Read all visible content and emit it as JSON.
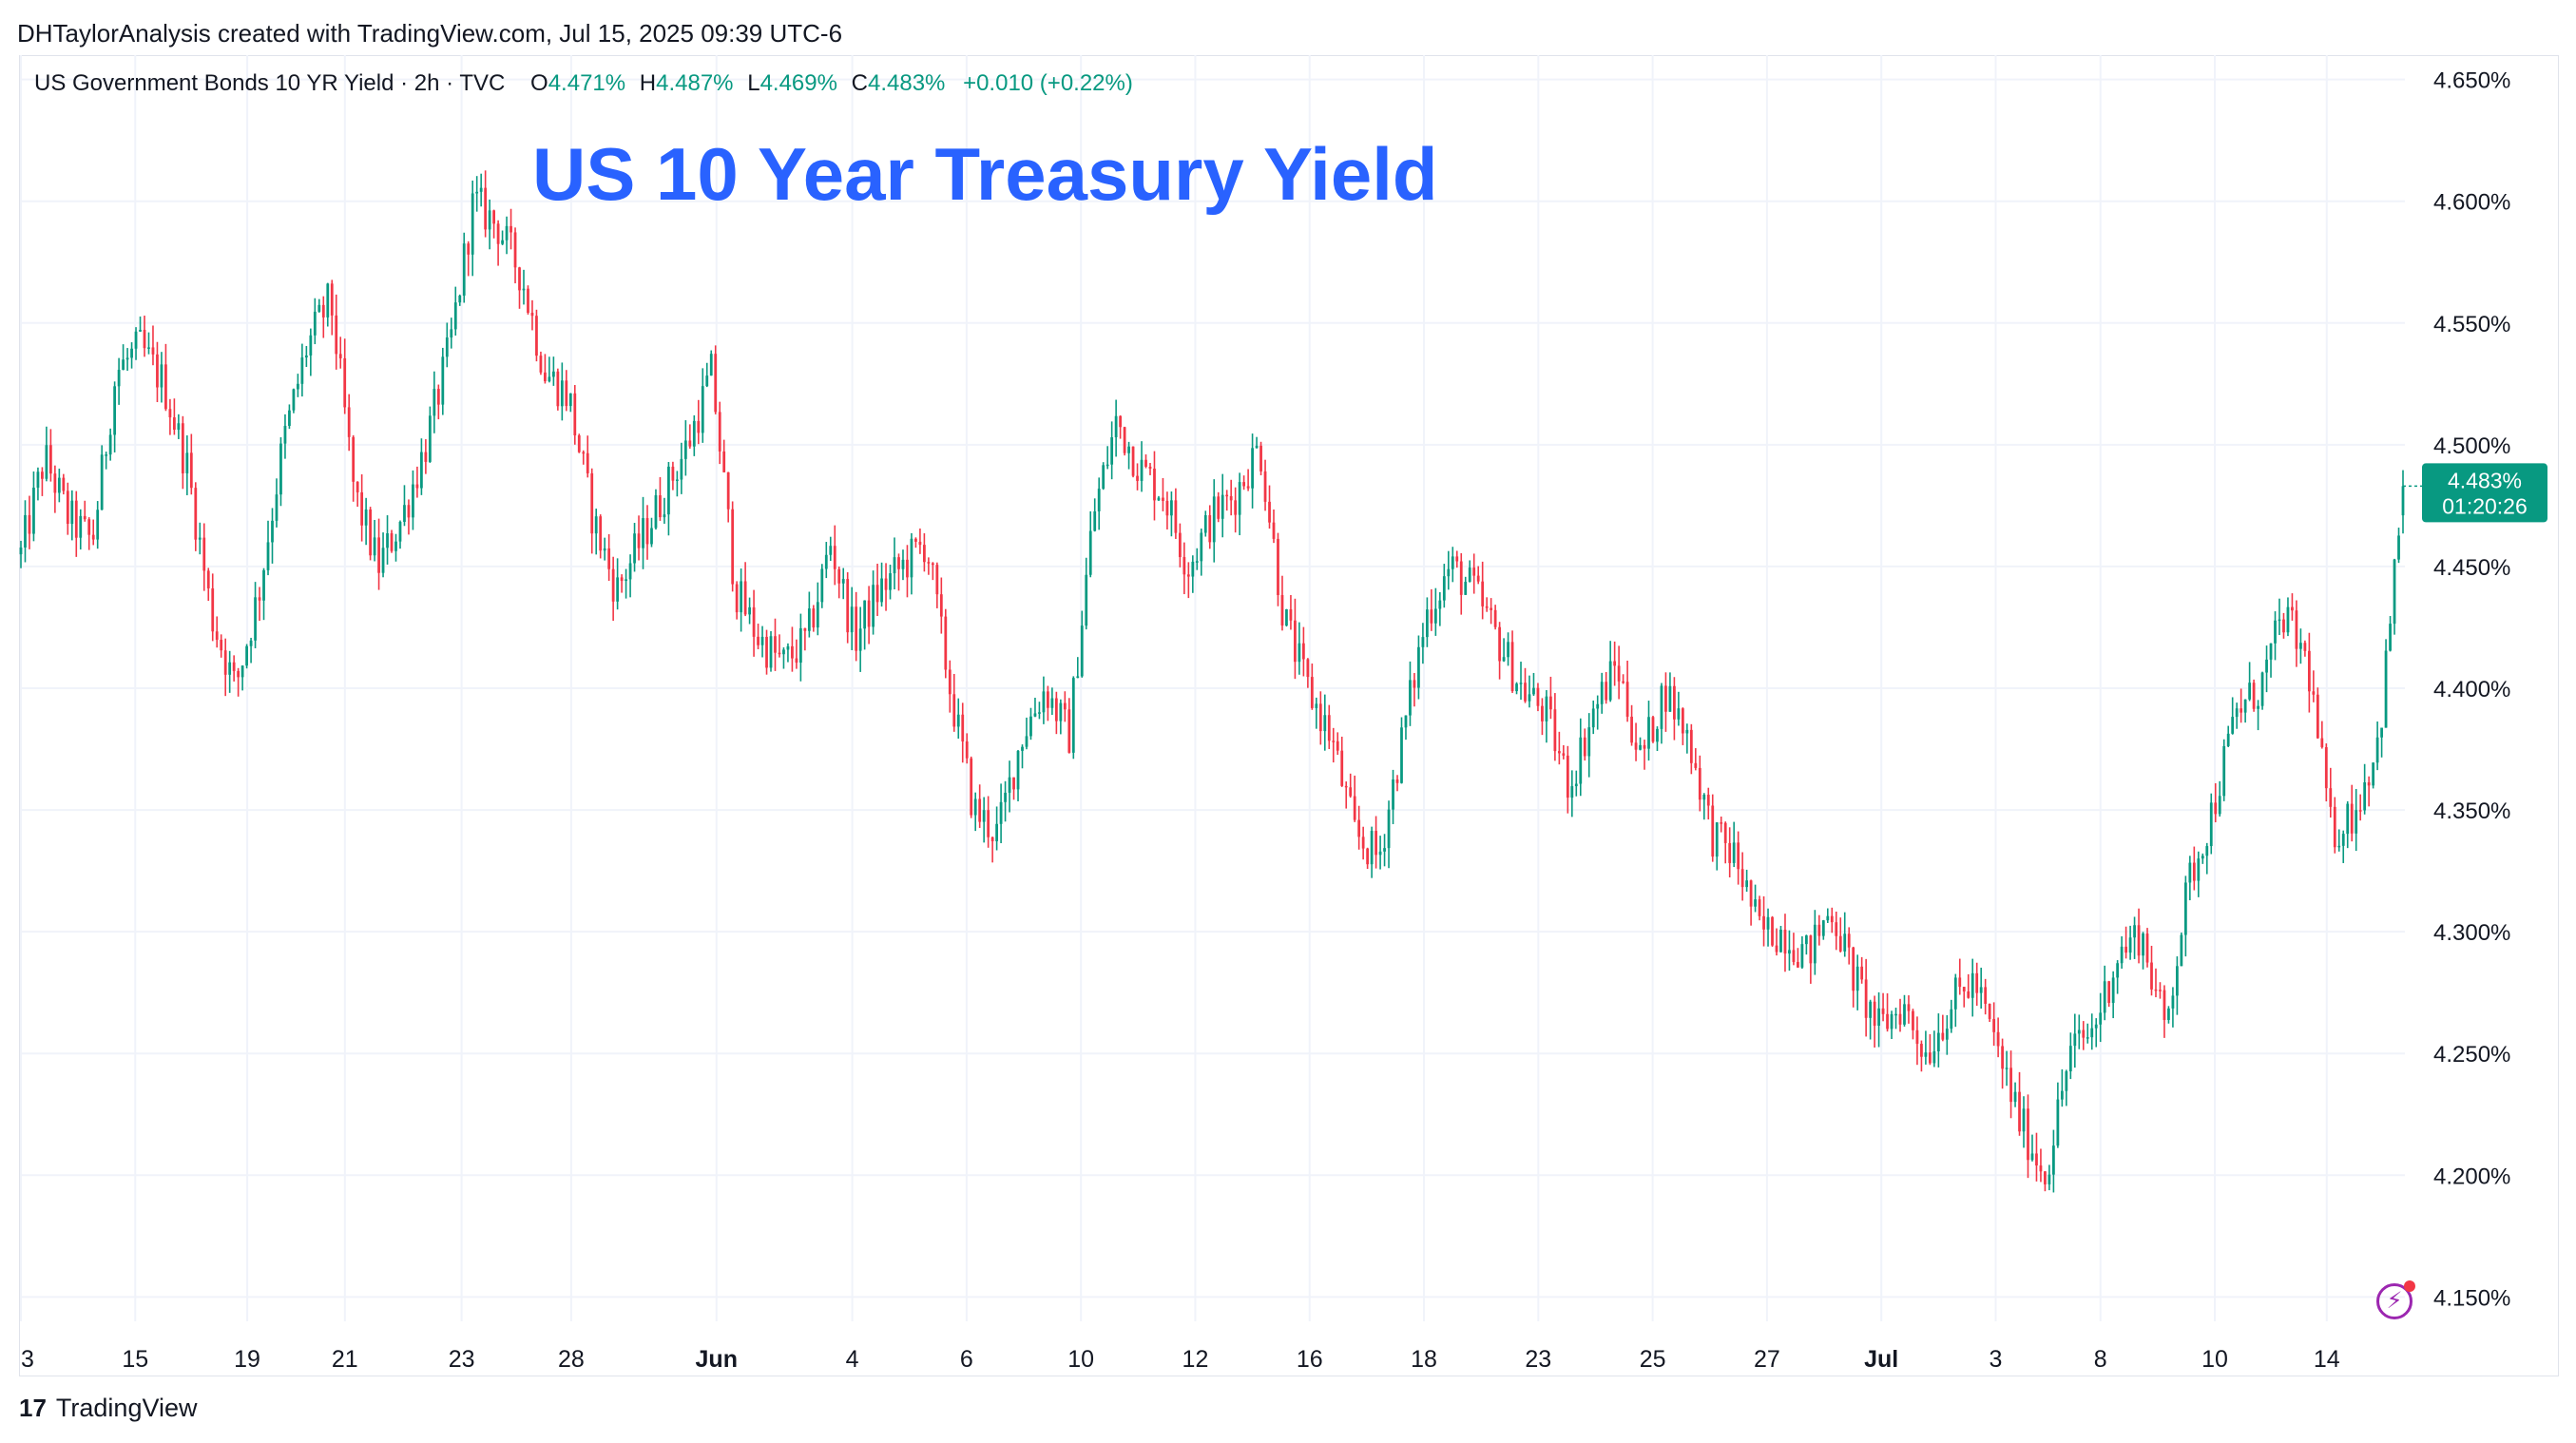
{
  "header": {
    "credit": "DHTaylorAnalysis created with TradingView.com, Jul 15, 2025 09:39 UTC-6"
  },
  "legend": {
    "symbol": "US Government Bonds 10 YR Yield · 2h · TVC",
    "open_label": "O",
    "open": "4.471%",
    "high_label": "H",
    "high": "4.487%",
    "low_label": "L",
    "low": "4.469%",
    "close_label": "C",
    "close": "4.483%",
    "change": "+0.010 (+0.22%)"
  },
  "overlay_title": "US 10 Year Treasury Yield",
  "price_tag": {
    "price": "4.483%",
    "countdown": "01:20:26"
  },
  "footer": {
    "logo": "17",
    "brand": "TradingView"
  },
  "icons": {
    "alert": "lightning-bolt-icon"
  },
  "colors": {
    "up": "#089981",
    "down": "#f23645",
    "title": "#2962ff",
    "grid": "#f0f3fa",
    "text": "#131722"
  },
  "chart_data": {
    "type": "candlestick",
    "title": "US 10 Year Treasury Yield",
    "interval": "2h",
    "ylim": [
      4.14,
      4.66
    ],
    "y_ticks": [
      "4.650%",
      "4.600%",
      "4.550%",
      "4.500%",
      "4.450%",
      "4.400%",
      "4.350%",
      "4.300%",
      "4.250%",
      "4.200%",
      "4.150%"
    ],
    "y_tick_values": [
      4.65,
      4.6,
      4.55,
      4.5,
      4.45,
      4.4,
      4.35,
      4.3,
      4.25,
      4.2,
      4.15
    ],
    "x_ticks": [
      "3",
      "15",
      "19",
      "21",
      "23",
      "28",
      "Jun",
      "4",
      "6",
      "10",
      "12",
      "16",
      "18",
      "23",
      "25",
      "27",
      "Jul",
      "3",
      "8",
      "10",
      "14"
    ],
    "x_tick_positions": [
      0.0,
      0.048,
      0.095,
      0.136,
      0.185,
      0.231,
      0.292,
      0.349,
      0.397,
      0.445,
      0.493,
      0.541,
      0.589,
      0.637,
      0.685,
      0.733,
      0.781,
      0.829,
      0.873,
      0.921,
      0.968
    ],
    "grid": true,
    "series": [
      {
        "close_path": [
          [
            0.0,
            4.455
          ],
          [
            0.01,
            4.495
          ],
          [
            0.02,
            4.47
          ],
          [
            0.03,
            4.46
          ],
          [
            0.04,
            4.53
          ],
          [
            0.05,
            4.54
          ],
          [
            0.06,
            4.525
          ],
          [
            0.07,
            4.49
          ],
          [
            0.08,
            4.43
          ],
          [
            0.09,
            4.4
          ],
          [
            0.1,
            4.44
          ],
          [
            0.11,
            4.5
          ],
          [
            0.12,
            4.54
          ],
          [
            0.13,
            4.56
          ],
          [
            0.14,
            4.48
          ],
          [
            0.15,
            4.45
          ],
          [
            0.16,
            4.47
          ],
          [
            0.17,
            4.5
          ],
          [
            0.18,
            4.54
          ],
          [
            0.19,
            4.6
          ],
          [
            0.2,
            4.59
          ],
          [
            0.21,
            4.57
          ],
          [
            0.22,
            4.53
          ],
          [
            0.23,
            4.52
          ],
          [
            0.24,
            4.47
          ],
          [
            0.25,
            4.44
          ],
          [
            0.26,
            4.46
          ],
          [
            0.27,
            4.48
          ],
          [
            0.28,
            4.5
          ],
          [
            0.29,
            4.53
          ],
          [
            0.3,
            4.44
          ],
          [
            0.31,
            4.42
          ],
          [
            0.32,
            4.41
          ],
          [
            0.33,
            4.42
          ],
          [
            0.34,
            4.46
          ],
          [
            0.35,
            4.42
          ],
          [
            0.36,
            4.44
          ],
          [
            0.37,
            4.45
          ],
          [
            0.38,
            4.46
          ],
          [
            0.39,
            4.4
          ],
          [
            0.4,
            4.35
          ],
          [
            0.41,
            4.34
          ],
          [
            0.42,
            4.38
          ],
          [
            0.43,
            4.4
          ],
          [
            0.44,
            4.38
          ],
          [
            0.45,
            4.47
          ],
          [
            0.46,
            4.51
          ],
          [
            0.47,
            4.49
          ],
          [
            0.48,
            4.48
          ],
          [
            0.49,
            4.45
          ],
          [
            0.5,
            4.47
          ],
          [
            0.51,
            4.48
          ],
          [
            0.52,
            4.5
          ],
          [
            0.53,
            4.43
          ],
          [
            0.54,
            4.4
          ],
          [
            0.55,
            4.38
          ],
          [
            0.56,
            4.34
          ],
          [
            0.57,
            4.33
          ],
          [
            0.58,
            4.38
          ],
          [
            0.59,
            4.43
          ],
          [
            0.6,
            4.45
          ],
          [
            0.61,
            4.44
          ],
          [
            0.62,
            4.42
          ],
          [
            0.63,
            4.4
          ],
          [
            0.64,
            4.39
          ],
          [
            0.65,
            4.36
          ],
          [
            0.66,
            4.39
          ],
          [
            0.67,
            4.41
          ],
          [
            0.68,
            4.37
          ],
          [
            0.69,
            4.4
          ],
          [
            0.7,
            4.38
          ],
          [
            0.71,
            4.34
          ],
          [
            0.72,
            4.33
          ],
          [
            0.73,
            4.3
          ],
          [
            0.74,
            4.3
          ],
          [
            0.75,
            4.29
          ],
          [
            0.76,
            4.31
          ],
          [
            0.77,
            4.28
          ],
          [
            0.78,
            4.26
          ],
          [
            0.79,
            4.27
          ],
          [
            0.8,
            4.25
          ],
          [
            0.81,
            4.27
          ],
          [
            0.82,
            4.28
          ],
          [
            0.83,
            4.25
          ],
          [
            0.84,
            4.22
          ],
          [
            0.85,
            4.2
          ],
          [
            0.86,
            4.25
          ],
          [
            0.87,
            4.26
          ],
          [
            0.88,
            4.29
          ],
          [
            0.89,
            4.3
          ],
          [
            0.9,
            4.26
          ],
          [
            0.91,
            4.32
          ],
          [
            0.92,
            4.35
          ],
          [
            0.93,
            4.39
          ],
          [
            0.94,
            4.4
          ],
          [
            0.95,
            4.43
          ],
          [
            0.96,
            4.41
          ],
          [
            0.97,
            4.34
          ],
          [
            0.98,
            4.35
          ],
          [
            0.99,
            4.38
          ],
          [
            1.0,
            4.483
          ]
        ],
        "last": {
          "open": 4.471,
          "high": 4.487,
          "low": 4.469,
          "close": 4.483
        }
      }
    ]
  }
}
